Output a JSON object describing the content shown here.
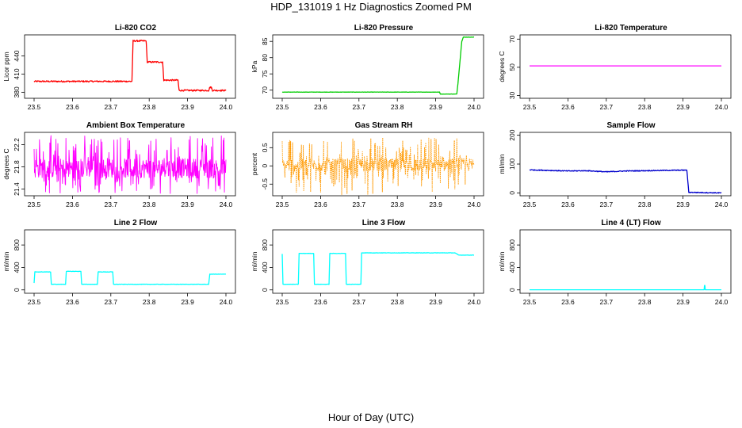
{
  "figure": {
    "title": "HDP_131019  1 Hz Diagnostics Zoomed PM",
    "xlabel": "Hour of Day (UTC)"
  },
  "chart_data": [
    {
      "type": "line",
      "title": "Li-820 CO2",
      "ylabel": "Licor ppm",
      "color": "#ff0000",
      "xlim": [
        23.5,
        24.0
      ],
      "ylim": [
        370,
        475
      ],
      "xticks": [
        "23.5",
        "23.6",
        "23.7",
        "23.8",
        "23.9",
        "24.0"
      ],
      "yticks": [
        380,
        410,
        440
      ],
      "noise": 1.2,
      "x": [
        23.5,
        23.755,
        23.758,
        23.792,
        23.795,
        23.835,
        23.838,
        23.875,
        23.878,
        23.955,
        23.958,
        23.962,
        23.965,
        24.0
      ],
      "y": [
        398,
        398,
        465,
        465,
        430,
        430,
        400,
        400,
        383,
        383,
        388,
        388,
        383,
        383
      ]
    },
    {
      "type": "line",
      "title": "Li-820 Pressure",
      "ylabel": "kPa",
      "color": "#00cc00",
      "xlim": [
        23.5,
        24.0
      ],
      "ylim": [
        67.5,
        87
      ],
      "xticks": [
        "23.5",
        "23.6",
        "23.7",
        "23.8",
        "23.9",
        "24.0"
      ],
      "yticks": [
        70,
        75,
        80,
        85
      ],
      "noise": 0.04,
      "x": [
        23.5,
        23.91,
        23.912,
        23.955,
        23.958,
        23.968,
        23.972,
        24.0
      ],
      "y": [
        69.4,
        69.4,
        68.8,
        68.8,
        72.0,
        85.0,
        86.3,
        86.3
      ]
    },
    {
      "type": "line",
      "title": "Li-820 Temperature",
      "ylabel": "degrees C",
      "color": "#ff00ff",
      "xlim": [
        23.5,
        24.0
      ],
      "ylim": [
        28,
        73
      ],
      "xticks": [
        "23.5",
        "23.6",
        "23.7",
        "23.8",
        "23.9",
        "24.0"
      ],
      "yticks": [
        30,
        50,
        70
      ],
      "noise": 0,
      "x": [
        23.5,
        24.0
      ],
      "y": [
        51,
        51
      ]
    },
    {
      "type": "line",
      "title": "Ambient Box Temperature",
      "ylabel": "degrees C",
      "color": "#ff00ff",
      "xlim": [
        23.5,
        24.0
      ],
      "ylim": [
        21.28,
        22.42
      ],
      "xticks": [
        "23.5",
        "23.6",
        "23.7",
        "23.8",
        "23.9",
        "24.0"
      ],
      "yticks": [
        21.4,
        21.8,
        22.2
      ],
      "oscillate": {
        "lo": 21.6,
        "hi": 21.95,
        "amp_lo": 21.32,
        "amp_hi": 22.38,
        "n": 500
      },
      "x": [],
      "y": []
    },
    {
      "type": "line",
      "title": "Gas Stream RH",
      "ylabel": "percent",
      "color": "#ff9900",
      "dashed": true,
      "xlim": [
        23.5,
        24.0
      ],
      "ylim": [
        -0.82,
        0.92
      ],
      "xticks": [
        "23.5",
        "23.6",
        "23.7",
        "23.8",
        "23.9",
        "24.0"
      ],
      "yticks": [
        -0.5,
        0,
        0.5
      ],
      "oscillate": {
        "lo": -0.15,
        "hi": 0.2,
        "amp_lo": -0.8,
        "amp_hi": 0.78,
        "n": 500
      },
      "x": [],
      "y": []
    },
    {
      "type": "line",
      "title": "Sample Flow",
      "ylabel": "ml/min",
      "color": "#0000cc",
      "xlim": [
        23.5,
        24.0
      ],
      "ylim": [
        -10,
        210
      ],
      "xticks": [
        "23.5",
        "23.6",
        "23.7",
        "23.8",
        "23.9",
        "24.0"
      ],
      "yticks": [
        0,
        100,
        200
      ],
      "noise": 1.5,
      "x": [
        23.5,
        23.6,
        23.65,
        23.7,
        23.75,
        23.8,
        23.85,
        23.91,
        23.915,
        24.0
      ],
      "y": [
        80,
        76,
        77,
        73,
        76,
        77,
        78,
        79,
        2,
        0
      ]
    },
    {
      "type": "line",
      "title": "Line 2 Flow",
      "ylabel": "ml/min",
      "color": "#00ffff",
      "xlim": [
        23.5,
        24.0
      ],
      "ylim": [
        -60,
        1070
      ],
      "xticks": [
        "23.5",
        "23.6",
        "23.7",
        "23.8",
        "23.9",
        "24.0"
      ],
      "yticks": [
        0,
        400,
        800
      ],
      "noise": 3,
      "x": [
        23.5,
        23.502,
        23.543,
        23.545,
        23.582,
        23.584,
        23.622,
        23.624,
        23.665,
        23.667,
        23.705,
        23.707,
        23.955,
        23.958,
        24.0
      ],
      "y": [
        120,
        320,
        320,
        100,
        100,
        330,
        330,
        100,
        100,
        320,
        320,
        100,
        100,
        280,
        280
      ]
    },
    {
      "type": "line",
      "title": "Line 3 Flow",
      "ylabel": "ml/min",
      "color": "#00ffff",
      "xlim": [
        23.5,
        24.0
      ],
      "ylim": [
        -60,
        1070
      ],
      "xticks": [
        "23.5",
        "23.6",
        "23.7",
        "23.8",
        "23.9",
        "24.0"
      ],
      "yticks": [
        0,
        400,
        800
      ],
      "noise": 3,
      "x": [
        23.5,
        23.502,
        23.542,
        23.544,
        23.582,
        23.584,
        23.622,
        23.624,
        23.665,
        23.667,
        23.705,
        23.707,
        23.95,
        23.96,
        24.0
      ],
      "y": [
        640,
        100,
        100,
        650,
        650,
        100,
        100,
        650,
        650,
        100,
        100,
        660,
        660,
        620,
        620
      ]
    },
    {
      "type": "line",
      "title": "Line 4 (LT) Flow",
      "ylabel": "ml/min",
      "color": "#00ffff",
      "xlim": [
        23.5,
        24.0
      ],
      "ylim": [
        -60,
        1070
      ],
      "xticks": [
        "23.5",
        "23.6",
        "23.7",
        "23.8",
        "23.9",
        "24.0"
      ],
      "yticks": [
        0,
        400,
        800
      ],
      "noise": 0,
      "x": [
        23.5,
        23.955,
        23.956,
        23.957,
        23.958,
        24.0
      ],
      "y": [
        2,
        2,
        80,
        80,
        2,
        2
      ]
    }
  ]
}
